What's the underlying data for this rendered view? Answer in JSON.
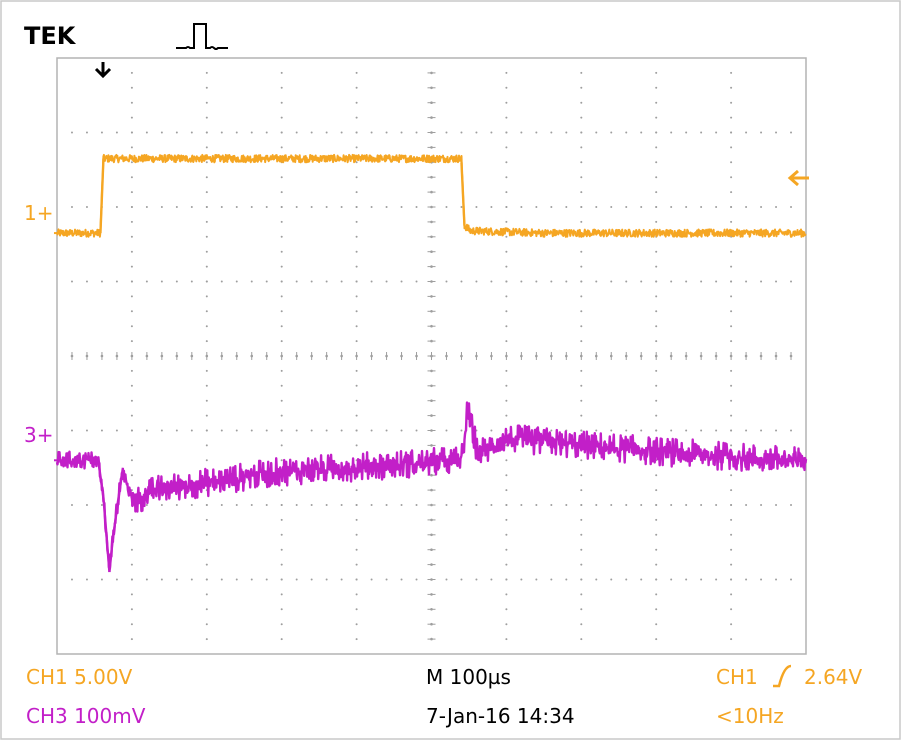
{
  "header": {
    "brand": "TEK"
  },
  "colors": {
    "ch1": "#f5a623",
    "ch3": "#c21fc8",
    "grid": "#9e9e9e",
    "frame": "#b3b3b3",
    "text": "#000000"
  },
  "icons": {
    "run_status": "pulse-icon",
    "trigger_position": "down-arrow-icon",
    "trigger_level": "left-arrow-icon"
  },
  "readouts": {
    "ch1_scale": "CH1 5.00V",
    "ch3_scale": "CH3 100mV",
    "timebase": "M 100µs",
    "datetime": "7-Jan-16 14:34",
    "trigger_source": "CH1",
    "trigger_level": "2.64V",
    "trigger_freq": "<10Hz"
  },
  "chart_data": {
    "type": "line",
    "grid": true,
    "x_divisions": 10,
    "y_divisions": 8,
    "xlim": [
      0,
      10
    ],
    "ylim": [
      0,
      8
    ],
    "series": [
      {
        "name": "1",
        "marker_label": "1+",
        "color": "#f5a623",
        "baseline": 5.65,
        "points": [
          [
            0,
            5.65
          ],
          [
            0.58,
            5.65
          ],
          [
            0.62,
            6.65
          ],
          [
            5.4,
            6.65
          ],
          [
            5.4,
            6.6
          ],
          [
            5.44,
            5.75
          ],
          [
            5.52,
            5.68
          ],
          [
            6.5,
            5.65
          ],
          [
            8.5,
            5.65
          ],
          [
            10,
            5.65
          ]
        ],
        "noise": 0.05
      },
      {
        "name": "3",
        "marker_label": "3+",
        "color": "#c21fc8",
        "baseline": 2.6,
        "points": [
          [
            0,
            2.6
          ],
          [
            0.55,
            2.6
          ],
          [
            0.62,
            2.1
          ],
          [
            0.7,
            1.1
          ],
          [
            0.74,
            1.5
          ],
          [
            0.8,
            1.95
          ],
          [
            0.88,
            2.5
          ],
          [
            0.94,
            2.2
          ],
          [
            1.05,
            2.05
          ],
          [
            1.3,
            2.2
          ],
          [
            3,
            2.45
          ],
          [
            5.4,
            2.6
          ],
          [
            5.48,
            3.25
          ],
          [
            5.55,
            3.0
          ],
          [
            5.62,
            2.7
          ],
          [
            5.75,
            2.75
          ],
          [
            5.95,
            2.9
          ],
          [
            6.5,
            2.85
          ],
          [
            8,
            2.72
          ],
          [
            10,
            2.58
          ]
        ],
        "noise": 0.12
      }
    ],
    "trigger": {
      "position_div": 0.58,
      "level_div": 6.05
    }
  }
}
